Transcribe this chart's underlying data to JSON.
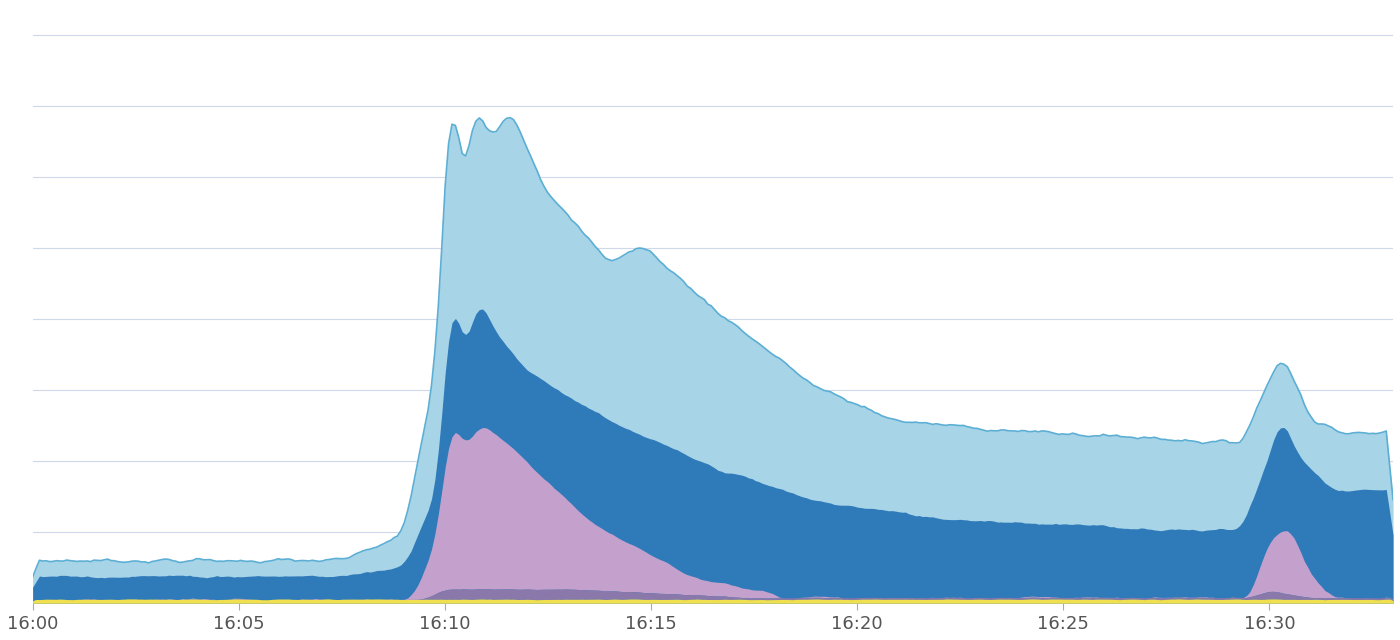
{
  "background_color": "#ffffff",
  "grid_color": "#cdd8ea",
  "x_tick_labels": [
    "16:00",
    "16:05",
    "16:10",
    "16:15",
    "16:20",
    "16:25",
    "16:30"
  ],
  "x_tick_positions": [
    0,
    5,
    10,
    15,
    20,
    25,
    30
  ],
  "colors": {
    "light_blue": "#a8d4e8",
    "light_blue_edge": "#5baed4",
    "med_blue": "#2f7ab9",
    "purple": "#c4a0cc",
    "dark_purple": "#8a78aa",
    "yellow": "#f0e050"
  },
  "n_points": 400,
  "xlim": [
    0,
    33
  ],
  "ylim": [
    0,
    1.0
  ]
}
